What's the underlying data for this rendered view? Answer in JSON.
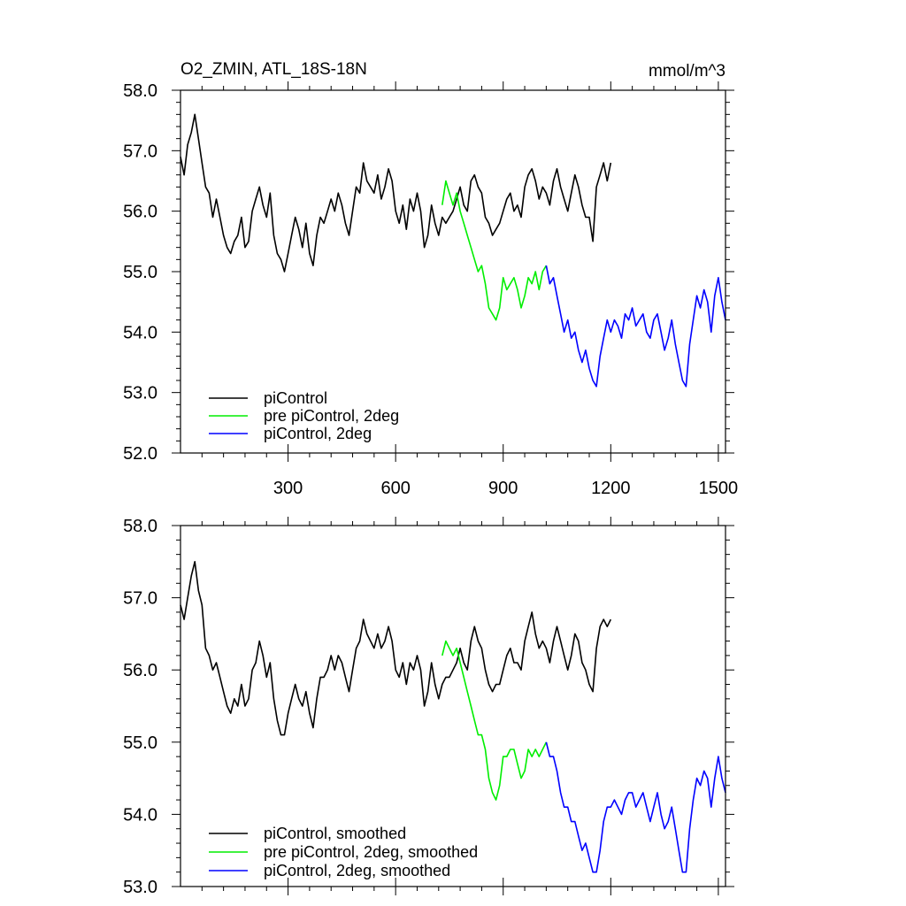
{
  "chart_data": [
    {
      "type": "line",
      "title": "O2_ZMIN, ATL_18S-18N",
      "units": "mmol/m^3",
      "xlabel": "",
      "ylabel": "",
      "xlim": [
        0,
        1520
      ],
      "ylim": [
        52.0,
        58.0
      ],
      "x_ticks": [
        300,
        600,
        900,
        1200,
        1500
      ],
      "x_tick_labels": [
        "300",
        "600",
        "900",
        "1200",
        "1500"
      ],
      "y_ticks": [
        52,
        53,
        54,
        55,
        56,
        57,
        58
      ],
      "y_tick_labels": [
        "52.0",
        "53.0",
        "54.0",
        "55.0",
        "56.0",
        "57.0",
        "58.0"
      ],
      "legend_position": "bottom-left",
      "series": [
        {
          "name": "piControl",
          "color": "#000000",
          "x": [
            0,
            10,
            20,
            30,
            40,
            50,
            60,
            70,
            80,
            90,
            100,
            110,
            120,
            130,
            140,
            150,
            160,
            170,
            180,
            190,
            200,
            210,
            220,
            230,
            240,
            250,
            260,
            270,
            280,
            290,
            300,
            310,
            320,
            330,
            340,
            350,
            360,
            370,
            380,
            390,
            400,
            410,
            420,
            430,
            440,
            450,
            460,
            470,
            480,
            490,
            500,
            510,
            520,
            530,
            540,
            550,
            560,
            570,
            580,
            590,
            600,
            610,
            620,
            630,
            640,
            650,
            660,
            670,
            680,
            690,
            700,
            710,
            720,
            730,
            740,
            750,
            760,
            770,
            780,
            790,
            800,
            810,
            820,
            830,
            840,
            850,
            860,
            870,
            880,
            890,
            900,
            910,
            920,
            930,
            940,
            950,
            960,
            970,
            980,
            990,
            1000,
            1010,
            1020,
            1030,
            1040,
            1050,
            1060,
            1070,
            1080,
            1090,
            1100,
            1110,
            1120,
            1130,
            1140,
            1150,
            1160,
            1170,
            1180,
            1190,
            1200
          ],
          "y": [
            56.9,
            56.6,
            57.1,
            57.3,
            57.6,
            57.2,
            56.8,
            56.4,
            56.3,
            55.9,
            56.2,
            55.9,
            55.6,
            55.4,
            55.3,
            55.5,
            55.6,
            55.9,
            55.4,
            55.5,
            56.0,
            56.2,
            56.4,
            56.1,
            55.9,
            56.3,
            55.6,
            55.3,
            55.2,
            55.0,
            55.3,
            55.6,
            55.9,
            55.7,
            55.4,
            55.8,
            55.3,
            55.1,
            55.6,
            55.9,
            55.8,
            56.0,
            56.2,
            56.0,
            56.3,
            56.1,
            55.8,
            55.6,
            56.0,
            56.4,
            56.3,
            56.8,
            56.5,
            56.4,
            56.3,
            56.6,
            56.2,
            56.4,
            56.7,
            56.5,
            56.0,
            55.8,
            56.1,
            55.7,
            56.2,
            56.0,
            56.3,
            56.0,
            55.4,
            55.6,
            56.1,
            55.8,
            55.6,
            55.9,
            55.8,
            55.9,
            56.0,
            56.2,
            56.4,
            56.1,
            56.0,
            56.5,
            56.6,
            56.4,
            56.3,
            55.9,
            55.8,
            55.6,
            55.7,
            55.8,
            56.0,
            56.2,
            56.3,
            56.0,
            56.1,
            55.9,
            56.4,
            56.6,
            56.7,
            56.5,
            56.2,
            56.4,
            56.3,
            56.1,
            56.5,
            56.7,
            56.4,
            56.2,
            56.0,
            56.3,
            56.6,
            56.4,
            56.1,
            55.9,
            55.9,
            55.5,
            56.4,
            56.6,
            56.8,
            56.5,
            56.8
          ]
        },
        {
          "name": "pre piControl, 2deg",
          "color": "#00ee00",
          "x": [
            730,
            740,
            750,
            760,
            770,
            780,
            790,
            800,
            810,
            820,
            830,
            840,
            850,
            860,
            870,
            880,
            890,
            900,
            910,
            920,
            930,
            940,
            950,
            960,
            970,
            980,
            990,
            1000,
            1010,
            1020
          ],
          "y": [
            56.1,
            56.5,
            56.3,
            56.1,
            56.3,
            56.0,
            55.8,
            55.6,
            55.4,
            55.2,
            55.0,
            55.1,
            54.8,
            54.4,
            54.3,
            54.2,
            54.4,
            54.9,
            54.7,
            54.8,
            54.9,
            54.7,
            54.4,
            54.6,
            54.9,
            54.8,
            55.0,
            54.7,
            55.0,
            55.1
          ]
        },
        {
          "name": "piControl, 2deg",
          "color": "#0000ff",
          "x": [
            1020,
            1030,
            1040,
            1050,
            1060,
            1070,
            1080,
            1090,
            1100,
            1110,
            1120,
            1130,
            1140,
            1150,
            1160,
            1170,
            1180,
            1190,
            1200,
            1210,
            1220,
            1230,
            1240,
            1250,
            1260,
            1270,
            1280,
            1290,
            1300,
            1310,
            1320,
            1330,
            1340,
            1350,
            1360,
            1370,
            1380,
            1390,
            1400,
            1410,
            1420,
            1430,
            1440,
            1450,
            1460,
            1470,
            1480,
            1490,
            1500,
            1510,
            1520
          ],
          "y": [
            55.1,
            54.8,
            54.9,
            54.6,
            54.3,
            54.0,
            54.2,
            53.9,
            54.0,
            53.7,
            53.5,
            53.7,
            53.4,
            53.2,
            53.1,
            53.6,
            53.9,
            54.2,
            54.0,
            54.2,
            54.1,
            53.9,
            54.3,
            54.2,
            54.4,
            54.1,
            54.2,
            54.3,
            54.0,
            53.9,
            54.2,
            54.3,
            54.0,
            53.7,
            53.9,
            54.2,
            53.8,
            53.5,
            53.2,
            53.1,
            53.8,
            54.2,
            54.6,
            54.4,
            54.7,
            54.5,
            54.0,
            54.6,
            54.9,
            54.5,
            54.2
          ]
        }
      ]
    },
    {
      "type": "line",
      "title": "",
      "xlabel": "",
      "ylabel": "",
      "xlim": [
        0,
        1520
      ],
      "ylim": [
        53.0,
        58.0
      ],
      "x_ticks": [
        300,
        600,
        900,
        1200,
        1500
      ],
      "x_tick_labels": [],
      "y_ticks": [
        53,
        54,
        55,
        56,
        57,
        58
      ],
      "y_tick_labels": [
        "53.0",
        "54.0",
        "55.0",
        "56.0",
        "57.0",
        "58.0"
      ],
      "legend_position": "bottom-left",
      "series": [
        {
          "name": "piControl, smoothed",
          "color": "#000000",
          "x": [
            0,
            10,
            20,
            30,
            40,
            50,
            60,
            70,
            80,
            90,
            100,
            110,
            120,
            130,
            140,
            150,
            160,
            170,
            180,
            190,
            200,
            210,
            220,
            230,
            240,
            250,
            260,
            270,
            280,
            290,
            300,
            310,
            320,
            330,
            340,
            350,
            360,
            370,
            380,
            390,
            400,
            410,
            420,
            430,
            440,
            450,
            460,
            470,
            480,
            490,
            500,
            510,
            520,
            530,
            540,
            550,
            560,
            570,
            580,
            590,
            600,
            610,
            620,
            630,
            640,
            650,
            660,
            670,
            680,
            690,
            700,
            710,
            720,
            730,
            740,
            750,
            760,
            770,
            780,
            790,
            800,
            810,
            820,
            830,
            840,
            850,
            860,
            870,
            880,
            890,
            900,
            910,
            920,
            930,
            940,
            950,
            960,
            970,
            980,
            990,
            1000,
            1010,
            1020,
            1030,
            1040,
            1050,
            1060,
            1070,
            1080,
            1090,
            1100,
            1110,
            1120,
            1130,
            1140,
            1150,
            1160,
            1170,
            1180,
            1190,
            1200
          ],
          "y": [
            56.9,
            56.7,
            57.0,
            57.3,
            57.5,
            57.1,
            56.9,
            56.3,
            56.2,
            56.0,
            56.1,
            55.9,
            55.7,
            55.5,
            55.4,
            55.6,
            55.5,
            55.8,
            55.5,
            55.6,
            56.0,
            56.1,
            56.4,
            56.2,
            55.9,
            56.1,
            55.6,
            55.3,
            55.1,
            55.1,
            55.4,
            55.6,
            55.8,
            55.6,
            55.5,
            55.7,
            55.4,
            55.2,
            55.6,
            55.9,
            55.9,
            56.0,
            56.2,
            56.0,
            56.2,
            56.1,
            55.9,
            55.7,
            56.0,
            56.3,
            56.4,
            56.7,
            56.5,
            56.4,
            56.3,
            56.5,
            56.3,
            56.4,
            56.6,
            56.4,
            56.0,
            55.9,
            56.1,
            55.8,
            56.1,
            56.0,
            56.2,
            56.0,
            55.5,
            55.7,
            56.1,
            55.8,
            55.6,
            55.8,
            55.9,
            55.9,
            56.0,
            56.1,
            56.3,
            56.1,
            56.0,
            56.4,
            56.6,
            56.4,
            56.3,
            56.0,
            55.8,
            55.7,
            55.8,
            55.8,
            56.0,
            56.2,
            56.3,
            56.1,
            56.1,
            56.0,
            56.4,
            56.6,
            56.8,
            56.5,
            56.3,
            56.4,
            56.3,
            56.1,
            56.4,
            56.6,
            56.4,
            56.2,
            56.0,
            56.2,
            56.5,
            56.4,
            56.1,
            56.0,
            55.8,
            55.7,
            56.3,
            56.6,
            56.7,
            56.6,
            56.7
          ]
        },
        {
          "name": "pre piControl, 2deg, smoothed",
          "color": "#00ee00",
          "x": [
            730,
            740,
            750,
            760,
            770,
            780,
            790,
            800,
            810,
            820,
            830,
            840,
            850,
            860,
            870,
            880,
            890,
            900,
            910,
            920,
            930,
            940,
            950,
            960,
            970,
            980,
            990,
            1000,
            1010,
            1020
          ],
          "y": [
            56.2,
            56.4,
            56.3,
            56.2,
            56.3,
            56.1,
            55.9,
            55.7,
            55.5,
            55.3,
            55.1,
            55.1,
            54.9,
            54.5,
            54.3,
            54.2,
            54.4,
            54.8,
            54.8,
            54.9,
            54.9,
            54.7,
            54.5,
            54.6,
            54.9,
            54.8,
            54.9,
            54.8,
            54.9,
            55.0
          ]
        },
        {
          "name": "piControl, 2deg, smoothed",
          "color": "#0000ff",
          "x": [
            1020,
            1030,
            1040,
            1050,
            1060,
            1070,
            1080,
            1090,
            1100,
            1110,
            1120,
            1130,
            1140,
            1150,
            1160,
            1170,
            1180,
            1190,
            1200,
            1210,
            1220,
            1230,
            1240,
            1250,
            1260,
            1270,
            1280,
            1290,
            1300,
            1310,
            1320,
            1330,
            1340,
            1350,
            1360,
            1370,
            1380,
            1390,
            1400,
            1410,
            1420,
            1430,
            1440,
            1450,
            1460,
            1470,
            1480,
            1490,
            1500,
            1510,
            1520
          ],
          "y": [
            55.0,
            54.8,
            54.8,
            54.6,
            54.3,
            54.1,
            54.1,
            53.9,
            53.9,
            53.7,
            53.5,
            53.6,
            53.4,
            53.2,
            53.2,
            53.5,
            53.9,
            54.1,
            54.1,
            54.2,
            54.1,
            54.0,
            54.2,
            54.3,
            54.3,
            54.1,
            54.2,
            54.3,
            54.1,
            53.9,
            54.1,
            54.3,
            54.0,
            53.8,
            53.9,
            54.1,
            53.8,
            53.5,
            53.2,
            53.2,
            53.8,
            54.2,
            54.5,
            54.4,
            54.6,
            54.5,
            54.1,
            54.5,
            54.8,
            54.5,
            54.3
          ]
        }
      ]
    }
  ]
}
